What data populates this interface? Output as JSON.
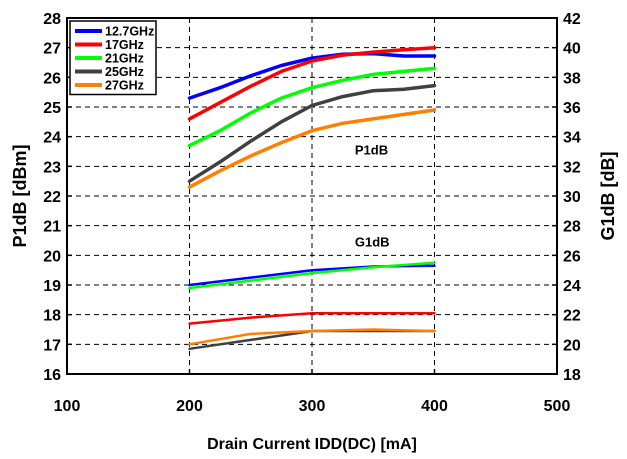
{
  "chart_data": {
    "type": "line",
    "xlabel": "Drain Current IDD(DC) [mA]",
    "ylabel_left": "P1dB [dBm]",
    "ylabel_right": "G1dB [dB]",
    "xlim": [
      100,
      500
    ],
    "ylim_left": [
      16,
      28
    ],
    "ylim_right": [
      18,
      42
    ],
    "xticks": [
      "100",
      "200",
      "300",
      "400",
      "500"
    ],
    "yticks_left": [
      "16",
      "17",
      "18",
      "19",
      "20",
      "21",
      "22",
      "23",
      "24",
      "25",
      "26",
      "27",
      "28"
    ],
    "yticks_right": [
      "18",
      "20",
      "22",
      "24",
      "26",
      "28",
      "30",
      "32",
      "34",
      "36",
      "38",
      "40",
      "42"
    ],
    "grid": "dashed",
    "legend_position": "top-left",
    "annotations": [
      {
        "text": "P1dB",
        "x": 335,
        "y": 23.4
      },
      {
        "text": "G1dB",
        "x": 335,
        "y": 20.3
      }
    ],
    "series": [
      {
        "name": "12.7GHz",
        "color": "#0000ff",
        "p1db": {
          "x": [
            200,
            225,
            250,
            275,
            300,
            325,
            350,
            375,
            400
          ],
          "y": [
            25.3,
            25.65,
            26.05,
            26.4,
            26.65,
            26.78,
            26.8,
            26.72,
            26.72
          ]
        },
        "g1db": {
          "x": [
            200,
            250,
            300,
            350,
            400
          ],
          "y": [
            24.0,
            24.5,
            25.0,
            25.25,
            25.3
          ]
        }
      },
      {
        "name": "17GHz",
        "color": "#ff0000",
        "p1db": {
          "x": [
            200,
            225,
            250,
            275,
            300,
            325,
            350,
            375,
            400
          ],
          "y": [
            24.6,
            25.15,
            25.7,
            26.2,
            26.55,
            26.75,
            26.85,
            26.93,
            27.0
          ]
        },
        "g1db": {
          "x": [
            200,
            250,
            300,
            350,
            400
          ],
          "y": [
            21.4,
            21.8,
            22.1,
            22.1,
            22.1
          ]
        }
      },
      {
        "name": "21GHz",
        "color": "#00ff00",
        "p1db": {
          "x": [
            200,
            225,
            250,
            275,
            300,
            325,
            350,
            375,
            400
          ],
          "y": [
            23.7,
            24.2,
            24.8,
            25.3,
            25.65,
            25.9,
            26.1,
            26.2,
            26.3
          ]
        },
        "g1db": {
          "x": [
            200,
            250,
            300,
            350,
            400
          ],
          "y": [
            23.8,
            24.3,
            24.8,
            25.2,
            25.5
          ]
        }
      },
      {
        "name": "25GHz",
        "color": "#404040",
        "p1db": {
          "x": [
            200,
            225,
            250,
            275,
            300,
            325,
            350,
            375,
            400
          ],
          "y": [
            22.5,
            23.15,
            23.85,
            24.5,
            25.05,
            25.35,
            25.55,
            25.6,
            25.72
          ]
        },
        "g1db": {
          "x": [
            200,
            250,
            300,
            350,
            400
          ],
          "y": [
            19.7,
            20.3,
            20.9,
            20.9,
            20.9
          ]
        }
      },
      {
        "name": "27GHz",
        "color": "#ff7f00",
        "p1db": {
          "x": [
            200,
            225,
            250,
            275,
            300,
            325,
            350,
            375,
            400
          ],
          "y": [
            22.3,
            22.85,
            23.35,
            23.8,
            24.2,
            24.45,
            24.6,
            24.75,
            24.9
          ]
        },
        "g1db": {
          "x": [
            200,
            250,
            300,
            350,
            400
          ],
          "y": [
            20.0,
            20.7,
            20.9,
            21.0,
            20.9
          ]
        }
      }
    ]
  }
}
